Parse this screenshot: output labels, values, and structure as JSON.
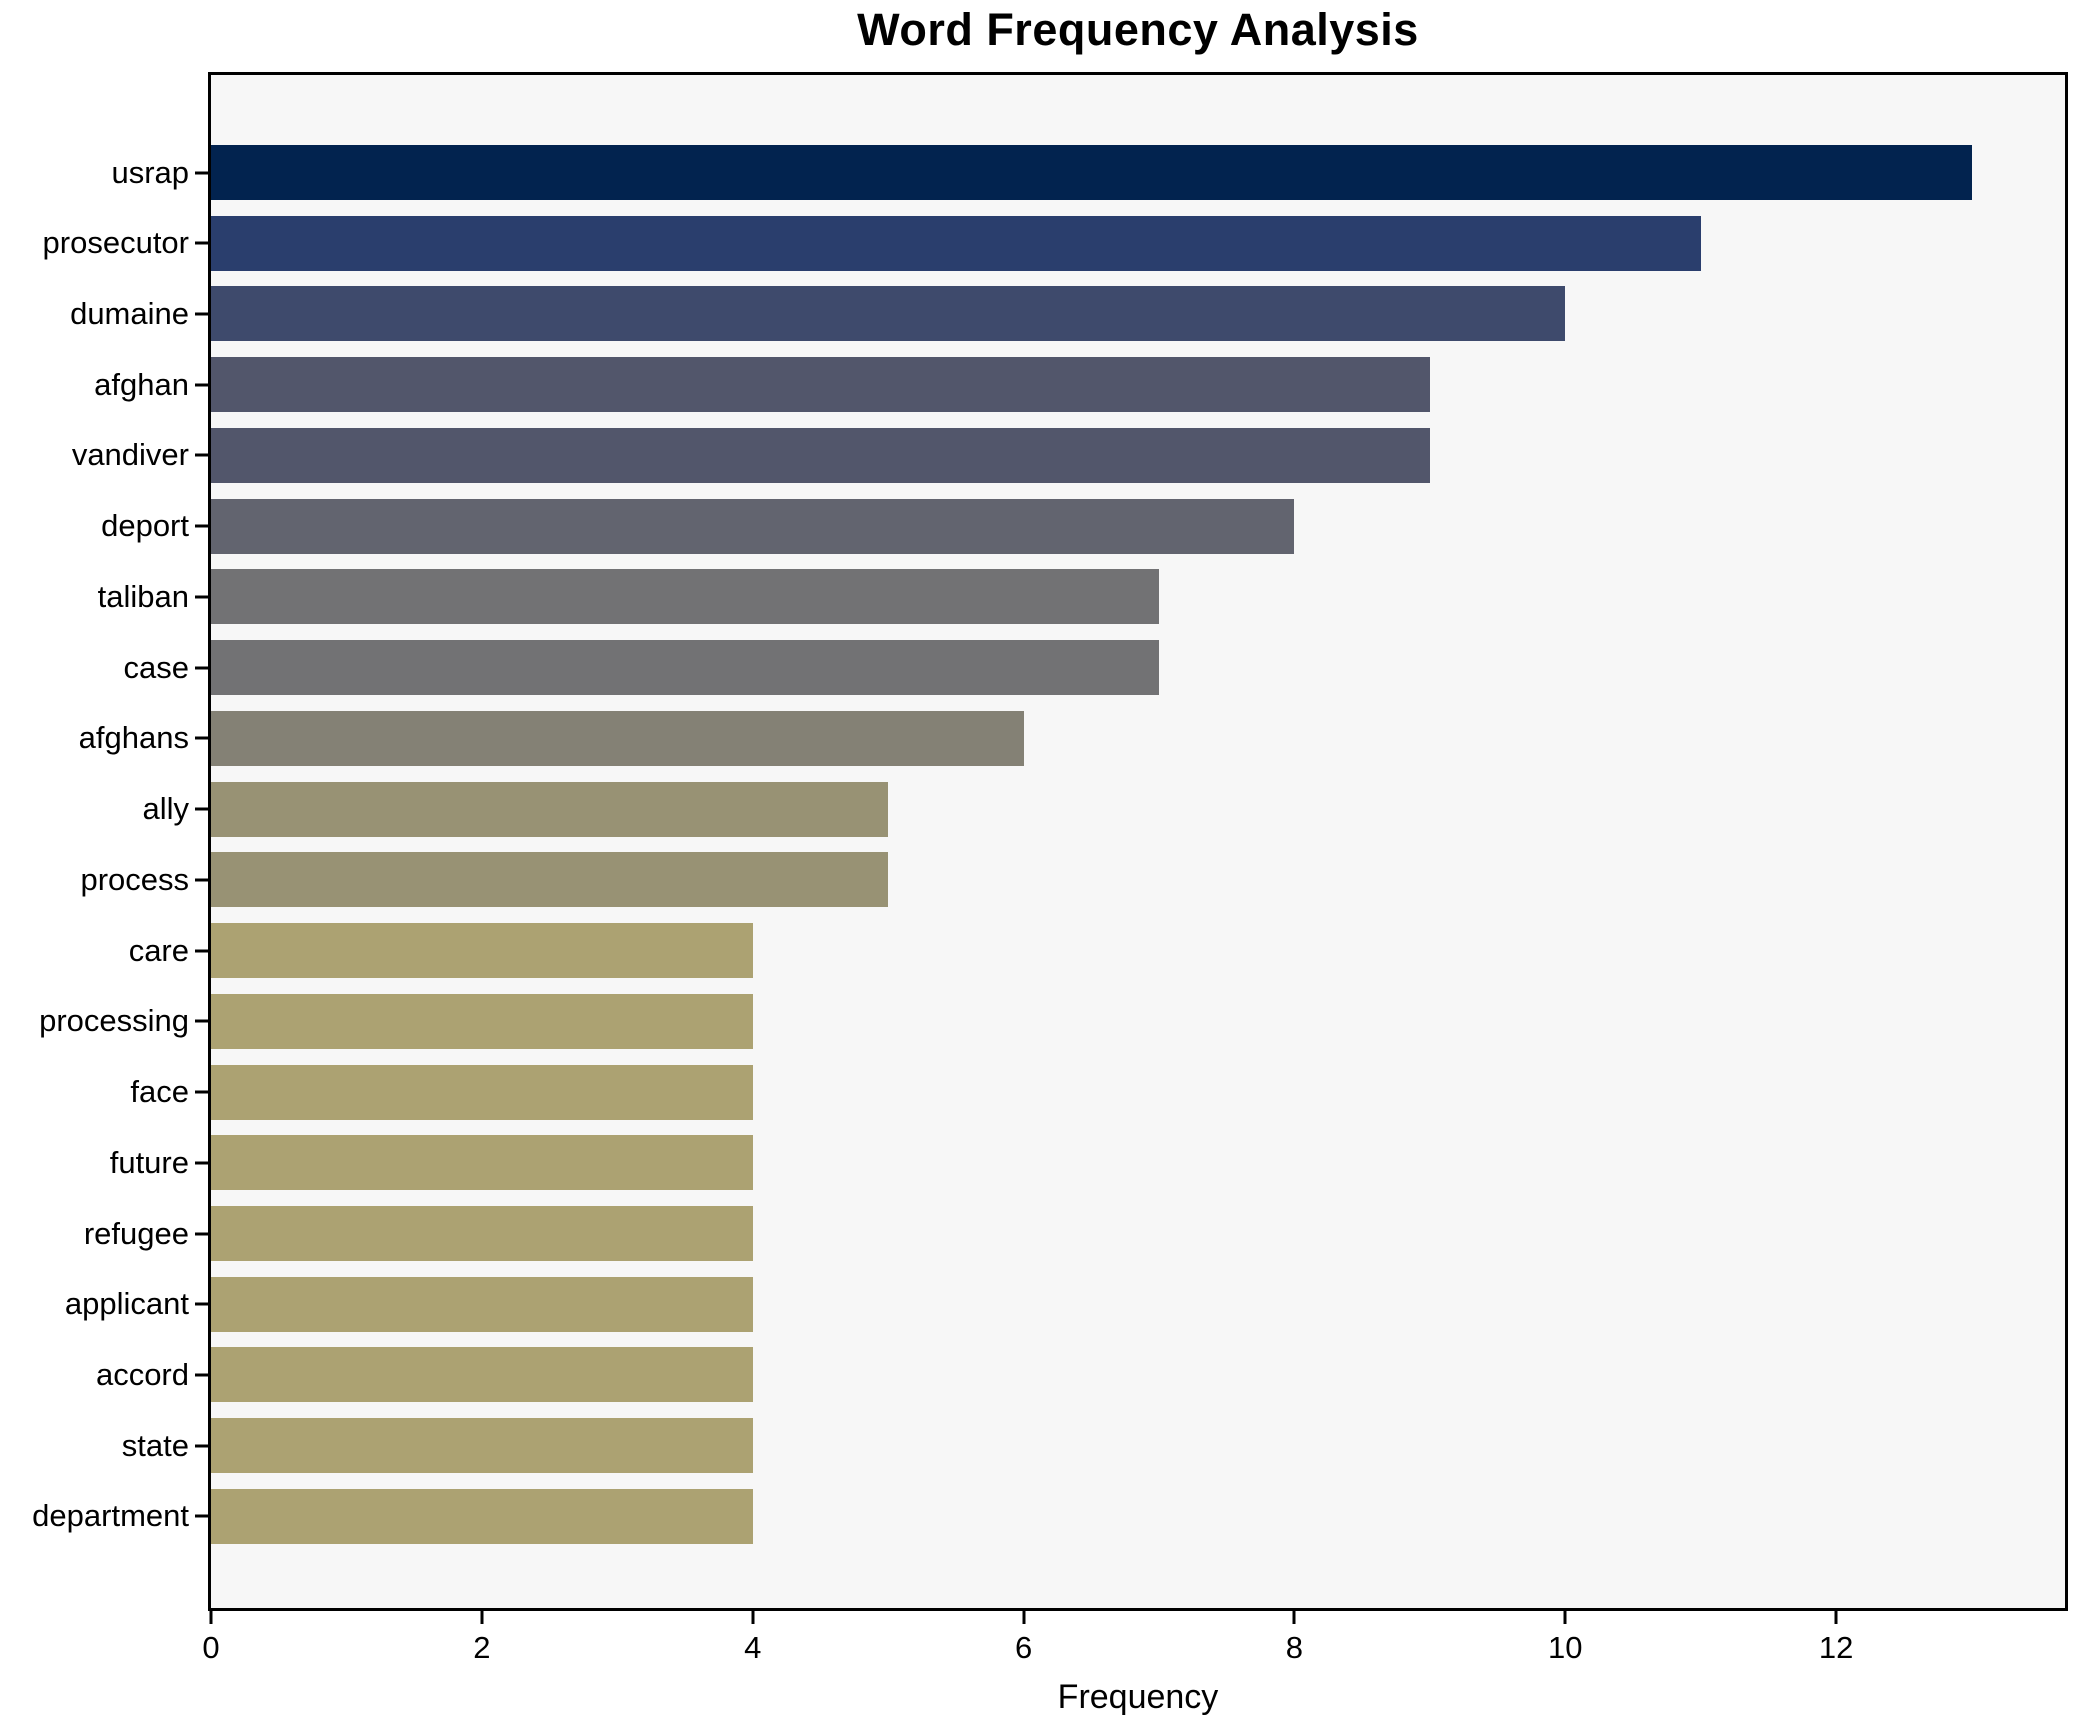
{
  "chart_data": {
    "type": "bar",
    "orientation": "horizontal",
    "title": "Word Frequency Analysis",
    "xlabel": "Frequency",
    "ylabel": "",
    "categories": [
      "usrap",
      "prosecutor",
      "dumaine",
      "afghan",
      "vandiver",
      "deport",
      "taliban",
      "case",
      "afghans",
      "ally",
      "process",
      "care",
      "processing",
      "face",
      "future",
      "refugee",
      "applicant",
      "accord",
      "state",
      "department"
    ],
    "values": [
      13,
      11,
      10,
      9,
      9,
      8,
      7,
      7,
      6,
      5,
      5,
      4,
      4,
      4,
      4,
      4,
      4,
      4,
      4,
      4
    ],
    "bar_colors": [
      "#02234f",
      "#2a3e6d",
      "#3e4a6c",
      "#52566b",
      "#52566b",
      "#62646f",
      "#727274",
      "#727274",
      "#848175",
      "#989274",
      "#989274",
      "#aca272",
      "#aca272",
      "#aca272",
      "#aca272",
      "#aca272",
      "#aca272",
      "#aca272",
      "#aca272",
      "#aca272"
    ],
    "xticks": [
      0,
      2,
      4,
      6,
      8,
      10,
      12
    ],
    "xlim": [
      0,
      13.69
    ],
    "grid": false,
    "legend": "none",
    "plot_background": "#f7f7f7",
    "figure_background": "#ffffff",
    "spine_color": "#000000"
  }
}
